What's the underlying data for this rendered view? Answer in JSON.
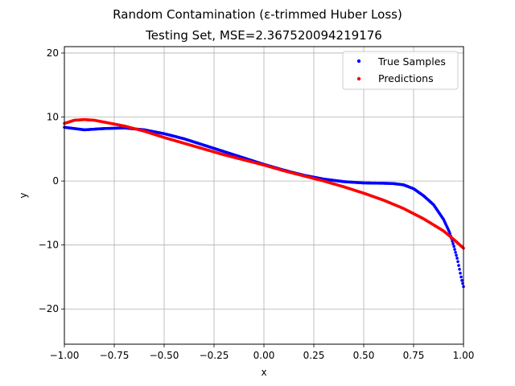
{
  "chart_data": {
    "type": "scatter",
    "title": "Random Contamination (ε-trimmed Huber Loss)",
    "subtitle": "Testing Set, MSE=2.367520094219176",
    "xlabel": "x",
    "ylabel": "y",
    "xlim": [
      -1.0,
      1.0
    ],
    "ylim": [
      -25.5,
      21
    ],
    "xticks": [
      -1.0,
      -0.75,
      -0.5,
      -0.25,
      0.0,
      0.25,
      0.5,
      0.75,
      1.0
    ],
    "xtick_labels": [
      "−1.00",
      "−0.75",
      "−0.50",
      "−0.25",
      "0.00",
      "0.25",
      "0.50",
      "0.75",
      "1.00"
    ],
    "yticks": [
      -20,
      -10,
      0,
      10,
      20
    ],
    "ytick_labels": [
      "−20",
      "−10",
      "0",
      "10",
      "20"
    ],
    "grid": true,
    "legend_position": "top-right",
    "series": [
      {
        "name": "True Samples",
        "color": "#0000ff",
        "curve_x": [
          -1.0,
          -0.9,
          -0.8,
          -0.7,
          -0.6,
          -0.5,
          -0.4,
          -0.3,
          -0.2,
          -0.1,
          0.0,
          0.1,
          0.2,
          0.3,
          0.4,
          0.5,
          0.6,
          0.65,
          0.7,
          0.75,
          0.8,
          0.85,
          0.9,
          0.93,
          0.95,
          0.97,
          0.98,
          0.99,
          1.0
        ],
        "curve_y": [
          8.4,
          8.0,
          8.2,
          8.3,
          8.0,
          7.4,
          6.6,
          5.6,
          4.6,
          3.6,
          2.6,
          1.7,
          0.9,
          0.3,
          -0.1,
          -0.3,
          -0.35,
          -0.4,
          -0.6,
          -1.2,
          -2.3,
          -3.7,
          -6.0,
          -8.0,
          -10.0,
          -12.3,
          -13.8,
          -15.3,
          -16.5
        ]
      },
      {
        "name": "Predictions",
        "color": "#ff0000",
        "curve_x": [
          -1.0,
          -0.95,
          -0.9,
          -0.85,
          -0.8,
          -0.7,
          -0.6,
          -0.5,
          -0.4,
          -0.3,
          -0.2,
          -0.1,
          0.0,
          0.1,
          0.2,
          0.3,
          0.4,
          0.5,
          0.6,
          0.7,
          0.8,
          0.9,
          0.95,
          1.0
        ],
        "curve_y": [
          9.0,
          9.5,
          9.6,
          9.5,
          9.2,
          8.6,
          7.8,
          6.8,
          5.9,
          5.0,
          4.1,
          3.3,
          2.5,
          1.6,
          0.8,
          0.0,
          -0.9,
          -1.9,
          -3.0,
          -4.3,
          -5.9,
          -7.8,
          -9.1,
          -10.5
        ]
      }
    ]
  }
}
